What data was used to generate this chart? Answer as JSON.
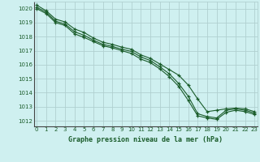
{
  "title": "Graphe pression niveau de la mer (hPa)",
  "background_color": "#cff0f0",
  "grid_color": "#b0d0d0",
  "line_color": "#1a5c2a",
  "x_ticks": [
    0,
    1,
    2,
    3,
    4,
    5,
    6,
    7,
    8,
    9,
    10,
    11,
    12,
    13,
    14,
    15,
    16,
    17,
    18,
    19,
    20,
    21,
    22,
    23
  ],
  "y_ticks": [
    1012,
    1013,
    1014,
    1015,
    1016,
    1017,
    1018,
    1019,
    1020
  ],
  "ylim": [
    1011.6,
    1020.5
  ],
  "xlim": [
    -0.3,
    23.3
  ],
  "line1": [
    1020.25,
    1019.85,
    1019.25,
    1019.05,
    1018.55,
    1018.3,
    1017.9,
    1017.6,
    1017.45,
    1017.25,
    1017.1,
    1016.7,
    1016.45,
    1016.05,
    1015.65,
    1015.25,
    1014.55,
    1013.55,
    1012.65,
    1012.75,
    1012.85,
    1012.9,
    1012.85,
    1012.65
  ],
  "line2": [
    1020.1,
    1019.75,
    1019.1,
    1018.9,
    1018.35,
    1018.1,
    1017.75,
    1017.45,
    1017.3,
    1017.1,
    1016.95,
    1016.55,
    1016.3,
    1015.85,
    1015.35,
    1014.65,
    1013.75,
    1012.5,
    1012.3,
    1012.2,
    1012.75,
    1012.85,
    1012.75,
    1012.55
  ],
  "line3": [
    1020.0,
    1019.65,
    1019.0,
    1018.8,
    1018.2,
    1017.95,
    1017.65,
    1017.35,
    1017.2,
    1017.0,
    1016.8,
    1016.4,
    1016.15,
    1015.7,
    1015.15,
    1014.45,
    1013.45,
    1012.35,
    1012.2,
    1012.1,
    1012.6,
    1012.75,
    1012.65,
    1012.45
  ]
}
